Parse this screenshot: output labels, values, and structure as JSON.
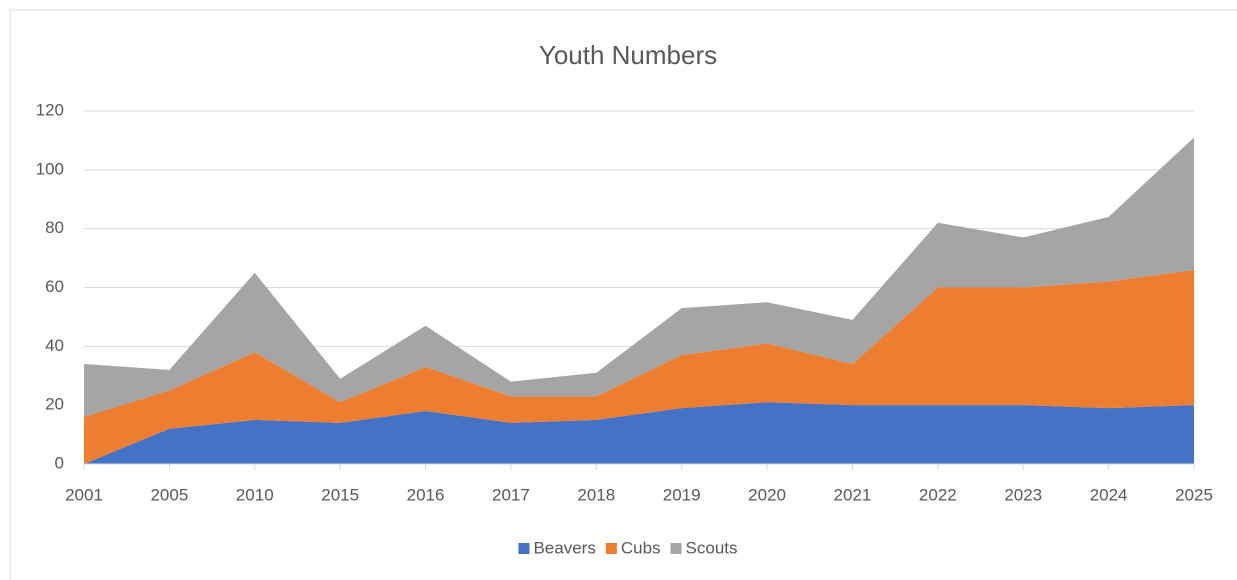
{
  "chart_data": {
    "type": "stacked_area",
    "title": "Youth Numbers",
    "categories": [
      "2001",
      "2005",
      "2010",
      "2015",
      "2016",
      "2017",
      "2018",
      "2019",
      "2020",
      "2021",
      "2022",
      "2023",
      "2024",
      "2025"
    ],
    "series": [
      {
        "name": "Beavers",
        "color": "#4472c4",
        "values": [
          0,
          12,
          15,
          14,
          18,
          14,
          15,
          19,
          21,
          20,
          20,
          20,
          19,
          20
        ]
      },
      {
        "name": "Cubs",
        "color": "#ed7d31",
        "values": [
          16,
          13,
          23,
          7,
          15,
          9,
          8,
          18,
          20,
          14,
          40,
          40,
          43,
          46
        ]
      },
      {
        "name": "Scouts",
        "color": "#a5a5a5",
        "values": [
          18,
          7,
          27,
          8,
          14,
          5,
          8,
          16,
          14,
          15,
          22,
          17,
          22,
          45
        ]
      }
    ],
    "ylim": [
      0,
      120
    ],
    "yticks": [
      0,
      20,
      40,
      60,
      80,
      100,
      120
    ],
    "grid": true,
    "legend": "bottom"
  }
}
